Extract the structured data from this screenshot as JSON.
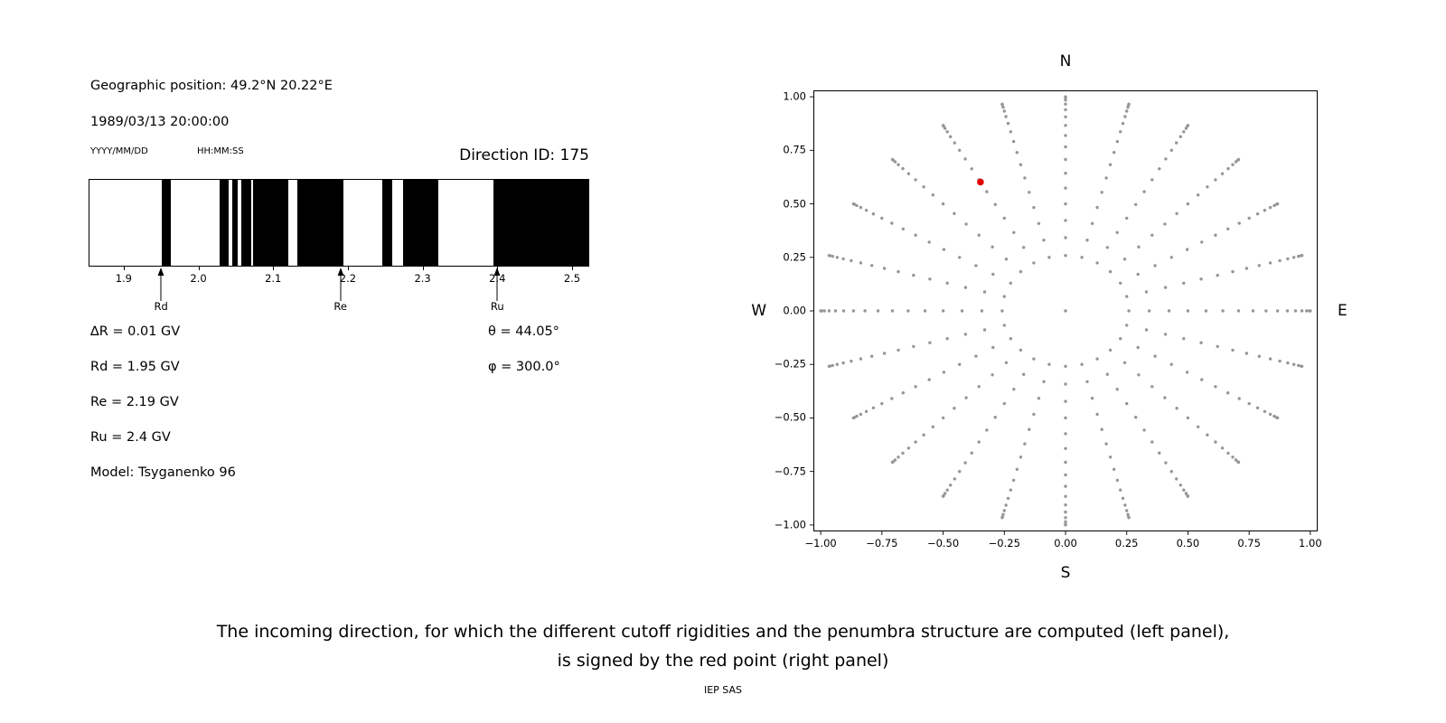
{
  "left_panel": {
    "geo_position": "Geographic position: 49.2°N 20.22°E",
    "datetime": "1989/03/13 20:00:00",
    "date_format": "YYYY/MM/DD",
    "time_format": "HH:MM:SS",
    "direction_id": "Direction ID: 175",
    "delta_r": "∆R = 0.01 GV",
    "rd": "Rd = 1.95 GV",
    "re": "Re = 2.19 GV",
    "ru": "Ru = 2.4 GV",
    "model": "Model: Tsyganenko 96",
    "theta": "θ = 44.05°",
    "phi": "φ = 300.0°"
  },
  "caption": {
    "line1": "The incoming direction, for which the different cutoff rigidities and the penumbra structure are computed (left panel),",
    "line2": "is signed by the red point (right panel)"
  },
  "footer": "IEP SAS",
  "chart_data": [
    {
      "type": "bar",
      "name": "penumbra-structure",
      "description": "Binary penumbra band plot: black bands over rigidity (GV)",
      "xlim": [
        1.853,
        2.523
      ],
      "xticks": [
        1.9,
        2.0,
        2.1,
        2.2,
        2.3,
        2.4,
        2.5
      ],
      "xtick_labels": [
        "1.9",
        "2.0",
        "2.1",
        "2.2",
        "2.3",
        "2.4",
        "2.5"
      ],
      "band_color": "#000000",
      "bands_gv": [
        [
          1.95,
          1.962
        ],
        [
          2.028,
          2.04
        ],
        [
          2.045,
          2.052
        ],
        [
          2.057,
          2.07
        ],
        [
          2.073,
          2.12
        ],
        [
          2.132,
          2.194
        ],
        [
          2.246,
          2.26
        ],
        [
          2.274,
          2.322
        ],
        [
          2.396,
          2.523
        ]
      ],
      "markers": [
        {
          "label": "Rd",
          "x": 1.95
        },
        {
          "label": "Re",
          "x": 2.19
        },
        {
          "label": "Ru",
          "x": 2.4
        }
      ]
    },
    {
      "type": "scatter",
      "name": "arrival-direction-map",
      "xlim": [
        -1.0,
        1.0
      ],
      "ylim": [
        -1.0,
        1.0
      ],
      "xticks": [
        -1.0,
        -0.75,
        -0.5,
        -0.25,
        0.0,
        0.25,
        0.5,
        0.75,
        1.0
      ],
      "yticks": [
        -1.0,
        -0.75,
        -0.5,
        -0.25,
        0.0,
        0.25,
        0.5,
        0.75,
        1.0
      ],
      "xtick_labels": [
        "−1.00",
        "−0.75",
        "−0.50",
        "−0.25",
        "0.00",
        "0.25",
        "0.50",
        "0.75",
        "1.00"
      ],
      "ytick_labels": [
        "−1.00",
        "−0.75",
        "−0.50",
        "−0.25",
        "0.00",
        "0.25",
        "0.50",
        "0.75",
        "1.00"
      ],
      "direction_labels": {
        "top": "N",
        "bottom": "S",
        "left": "W",
        "right": "E"
      },
      "grid_dots": {
        "color": "#969696",
        "marker_radius_px": 1.7,
        "azimuth_deg_start": 0,
        "azimuth_deg_step": 15,
        "azimuth_count": 24,
        "zenith_deg_start": 15,
        "zenith_deg_step": 5,
        "zenith_count": 16,
        "radius_rule": "sin(zenith)",
        "center_dot": true
      },
      "red_point": {
        "x": -0.3475,
        "y": 0.6018,
        "color": "#e00000",
        "marker_radius_px": 3.8
      }
    }
  ]
}
